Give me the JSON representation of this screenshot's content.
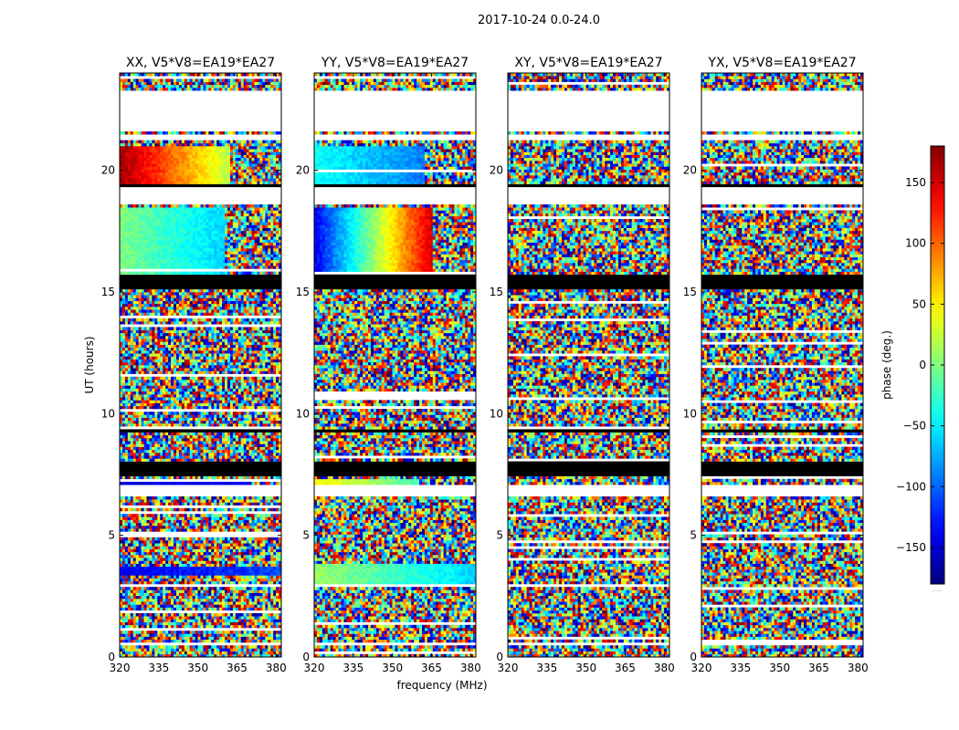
{
  "figure": {
    "suptitle": "2017-10-24 0.0-24.0",
    "xlabel": "frequency (MHz)",
    "ylabel": "UT (hours)",
    "colorbar_label": "phase (deg.)",
    "colorbar_footer": "....."
  },
  "chart_data": {
    "type": "heatmap",
    "colormap": "jet",
    "xlim": [
      320,
      382
    ],
    "ylim": [
      0,
      24
    ],
    "x_ticks": [
      320,
      335,
      350,
      365,
      380
    ],
    "y_ticks": [
      0,
      5,
      10,
      15,
      20
    ],
    "color_range": [
      -180,
      180
    ],
    "colorbar_ticks": [
      -150,
      -100,
      -50,
      0,
      50,
      100,
      150
    ],
    "blank_hours": [
      [
        0.45,
        0.55
      ],
      [
        21.2,
        21.5
      ],
      [
        21.6,
        22.0
      ],
      [
        22.0,
        23.3
      ],
      [
        18.6,
        19.3
      ],
      [
        6.55,
        7.1
      ]
    ],
    "flagged_black_hours": [
      [
        15.1,
        15.7
      ],
      [
        7.5,
        8.05
      ],
      [
        19.35,
        19.5
      ],
      [
        9.3,
        9.4
      ]
    ],
    "panels": [
      {
        "title": "XX, V5*V8=EA19*EA27",
        "coherent_segments": [
          {
            "hours": [
              19.5,
              21.0
            ],
            "freq_max": 362,
            "phase_start": 170,
            "phase_end": 20
          },
          {
            "hours": [
              15.7,
              18.5
            ],
            "freq_max": 360,
            "phase_start": 0,
            "phase_end": -60
          },
          {
            "hours": [
              7.1,
              7.3
            ],
            "freq_max": 370,
            "phase_start": -150,
            "phase_end": -140
          },
          {
            "hours": [
              3.4,
              3.7
            ],
            "freq_max": 382,
            "phase_start": -140,
            "phase_end": -110
          }
        ]
      },
      {
        "title": "YY, V5*V8=EA19*EA27",
        "coherent_segments": [
          {
            "hours": [
              19.5,
              21.0
            ],
            "freq_max": 362,
            "phase_start": -40,
            "phase_end": -90
          },
          {
            "hours": [
              15.7,
              18.5
            ],
            "freq_max": 365,
            "phase_start": -140,
            "phase_end": 150
          },
          {
            "hours": [
              7.1,
              7.3
            ],
            "freq_max": 360,
            "phase_start": 50,
            "phase_end": -20
          },
          {
            "hours": [
              3.0,
              3.8
            ],
            "freq_max": 382,
            "phase_start": 10,
            "phase_end": -60
          }
        ]
      },
      {
        "title": "XY, V5*V8=EA19*EA27",
        "coherent_segments": []
      },
      {
        "title": "YX, V5*V8=EA19*EA27",
        "coherent_segments": []
      }
    ]
  }
}
